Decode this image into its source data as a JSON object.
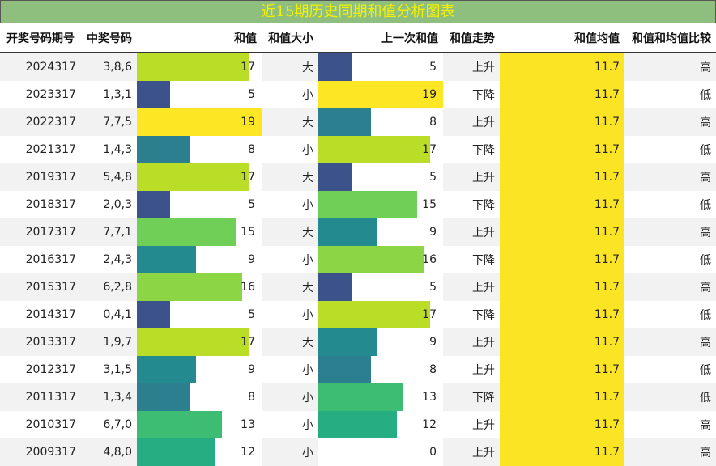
{
  "title": "近15期历史同期和值分析图表",
  "headers": [
    "开奖号码期号",
    "中奖号码",
    "和值",
    "和值大小",
    "上一次和值",
    "和值走势",
    "和值均值",
    "和值和均值比较"
  ],
  "rows": [
    {
      "issue": "2024317",
      "numbers": "3,8,6",
      "sum": 17,
      "size": "大",
      "prev_sum": 5,
      "trend": "上升",
      "avg": "11.7",
      "cmp": "高"
    },
    {
      "issue": "2023317",
      "numbers": "1,3,1",
      "sum": 5,
      "size": "小",
      "prev_sum": 19,
      "trend": "下降",
      "avg": "11.7",
      "cmp": "低"
    },
    {
      "issue": "2022317",
      "numbers": "7,7,5",
      "sum": 19,
      "size": "大",
      "prev_sum": 8,
      "trend": "上升",
      "avg": "11.7",
      "cmp": "高"
    },
    {
      "issue": "2021317",
      "numbers": "1,4,3",
      "sum": 8,
      "size": "小",
      "prev_sum": 17,
      "trend": "下降",
      "avg": "11.7",
      "cmp": "低"
    },
    {
      "issue": "2019317",
      "numbers": "5,4,8",
      "sum": 17,
      "size": "大",
      "prev_sum": 5,
      "trend": "上升",
      "avg": "11.7",
      "cmp": "高"
    },
    {
      "issue": "2018317",
      "numbers": "2,0,3",
      "sum": 5,
      "size": "小",
      "prev_sum": 15,
      "trend": "下降",
      "avg": "11.7",
      "cmp": "低"
    },
    {
      "issue": "2017317",
      "numbers": "7,7,1",
      "sum": 15,
      "size": "大",
      "prev_sum": 9,
      "trend": "上升",
      "avg": "11.7",
      "cmp": "高"
    },
    {
      "issue": "2016317",
      "numbers": "2,4,3",
      "sum": 9,
      "size": "小",
      "prev_sum": 16,
      "trend": "下降",
      "avg": "11.7",
      "cmp": "低"
    },
    {
      "issue": "2015317",
      "numbers": "6,2,8",
      "sum": 16,
      "size": "大",
      "prev_sum": 5,
      "trend": "上升",
      "avg": "11.7",
      "cmp": "高"
    },
    {
      "issue": "2014317",
      "numbers": "0,4,1",
      "sum": 5,
      "size": "小",
      "prev_sum": 17,
      "trend": "下降",
      "avg": "11.7",
      "cmp": "低"
    },
    {
      "issue": "2013317",
      "numbers": "1,9,7",
      "sum": 17,
      "size": "大",
      "prev_sum": 9,
      "trend": "上升",
      "avg": "11.7",
      "cmp": "高"
    },
    {
      "issue": "2012317",
      "numbers": "3,1,5",
      "sum": 9,
      "size": "小",
      "prev_sum": 8,
      "trend": "上升",
      "avg": "11.7",
      "cmp": "低"
    },
    {
      "issue": "2011317",
      "numbers": "1,3,4",
      "sum": 8,
      "size": "小",
      "prev_sum": 13,
      "trend": "下降",
      "avg": "11.7",
      "cmp": "低"
    },
    {
      "issue": "2010317",
      "numbers": "6,7,0",
      "sum": 13,
      "size": "小",
      "prev_sum": 12,
      "trend": "上升",
      "avg": "11.7",
      "cmp": "高"
    },
    {
      "issue": "2009317",
      "numbers": "4,8,0",
      "sum": 12,
      "size": "小",
      "prev_sum": 0,
      "trend": "上升",
      "avg": "11.7",
      "cmp": "高"
    }
  ],
  "chart_data": {
    "type": "table",
    "title": "近15期历史同期和值分析图表",
    "bar_max": 19,
    "colors": {
      "5": "#3b528b",
      "8": "#2c7f8e",
      "9": "#238b8f",
      "12": "#26ad81",
      "13": "#3dbc73",
      "15": "#6fcf57",
      "16": "#8cd645",
      "17": "#bade28",
      "19": "#fde725",
      "avg": "#fbe423",
      "title_bg": "#8fbf7f",
      "title_text": "#f4f000"
    }
  }
}
